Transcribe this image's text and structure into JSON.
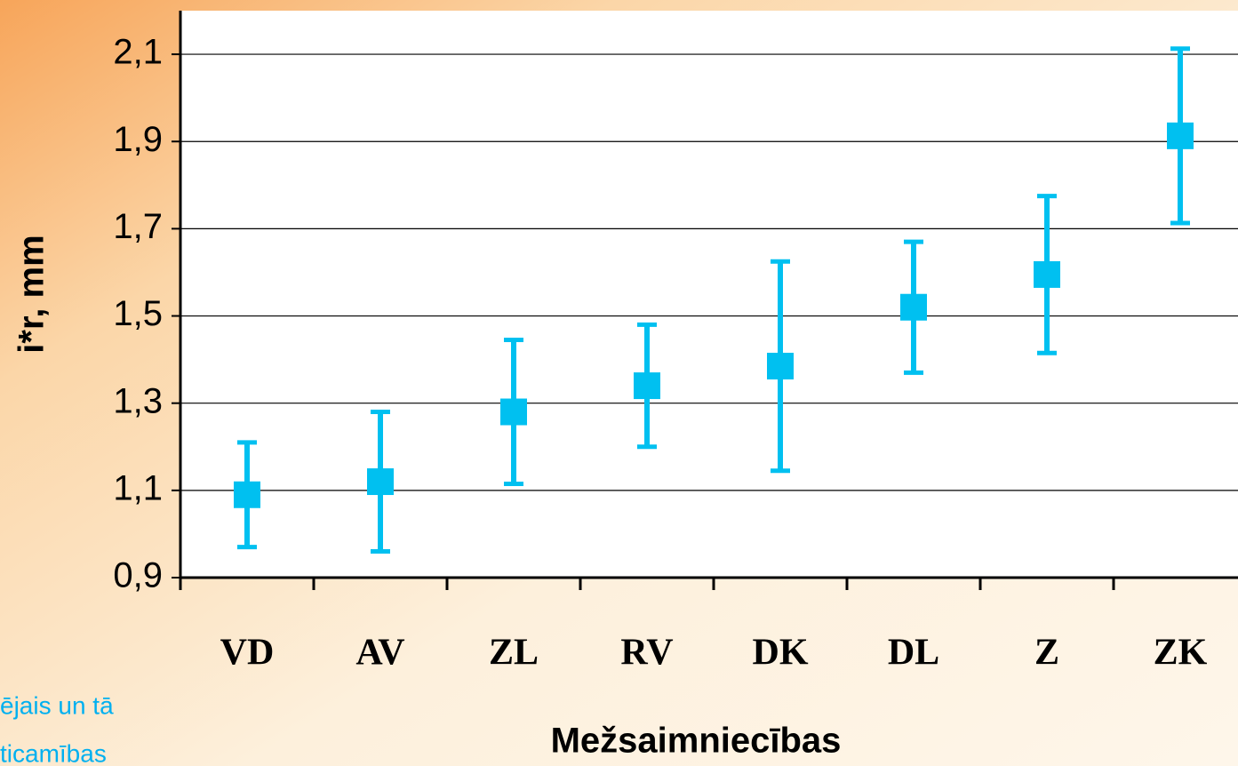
{
  "chart_data": {
    "type": "errorbar",
    "x_label": "Mežsaimniecības",
    "y_label": "i*r, mm",
    "categories": [
      "VD",
      "AV",
      "ZL",
      "RV",
      "DK",
      "DL",
      "Z",
      "ZK"
    ],
    "values": [
      1.09,
      1.12,
      1.28,
      1.34,
      1.385,
      1.52,
      1.595,
      1.913
    ],
    "errors": [
      0.12,
      0.16,
      0.165,
      0.14,
      0.24,
      0.15,
      0.18,
      0.2
    ],
    "color": "#00c0f0",
    "ylim": [
      0.9,
      2.2
    ],
    "yticks": [
      {
        "value": 0.9,
        "label": "0,9"
      },
      {
        "value": 1.1,
        "label": "1,1"
      },
      {
        "value": 1.3,
        "label": "1,3"
      },
      {
        "value": 1.5,
        "label": "1,5"
      },
      {
        "value": 1.7,
        "label": "1,7"
      },
      {
        "value": 1.9,
        "label": "1,9"
      },
      {
        "value": 2.1,
        "label": "2,1"
      }
    ],
    "grid": true,
    "annotations": [
      "ējais un tā",
      "ticamības"
    ]
  }
}
